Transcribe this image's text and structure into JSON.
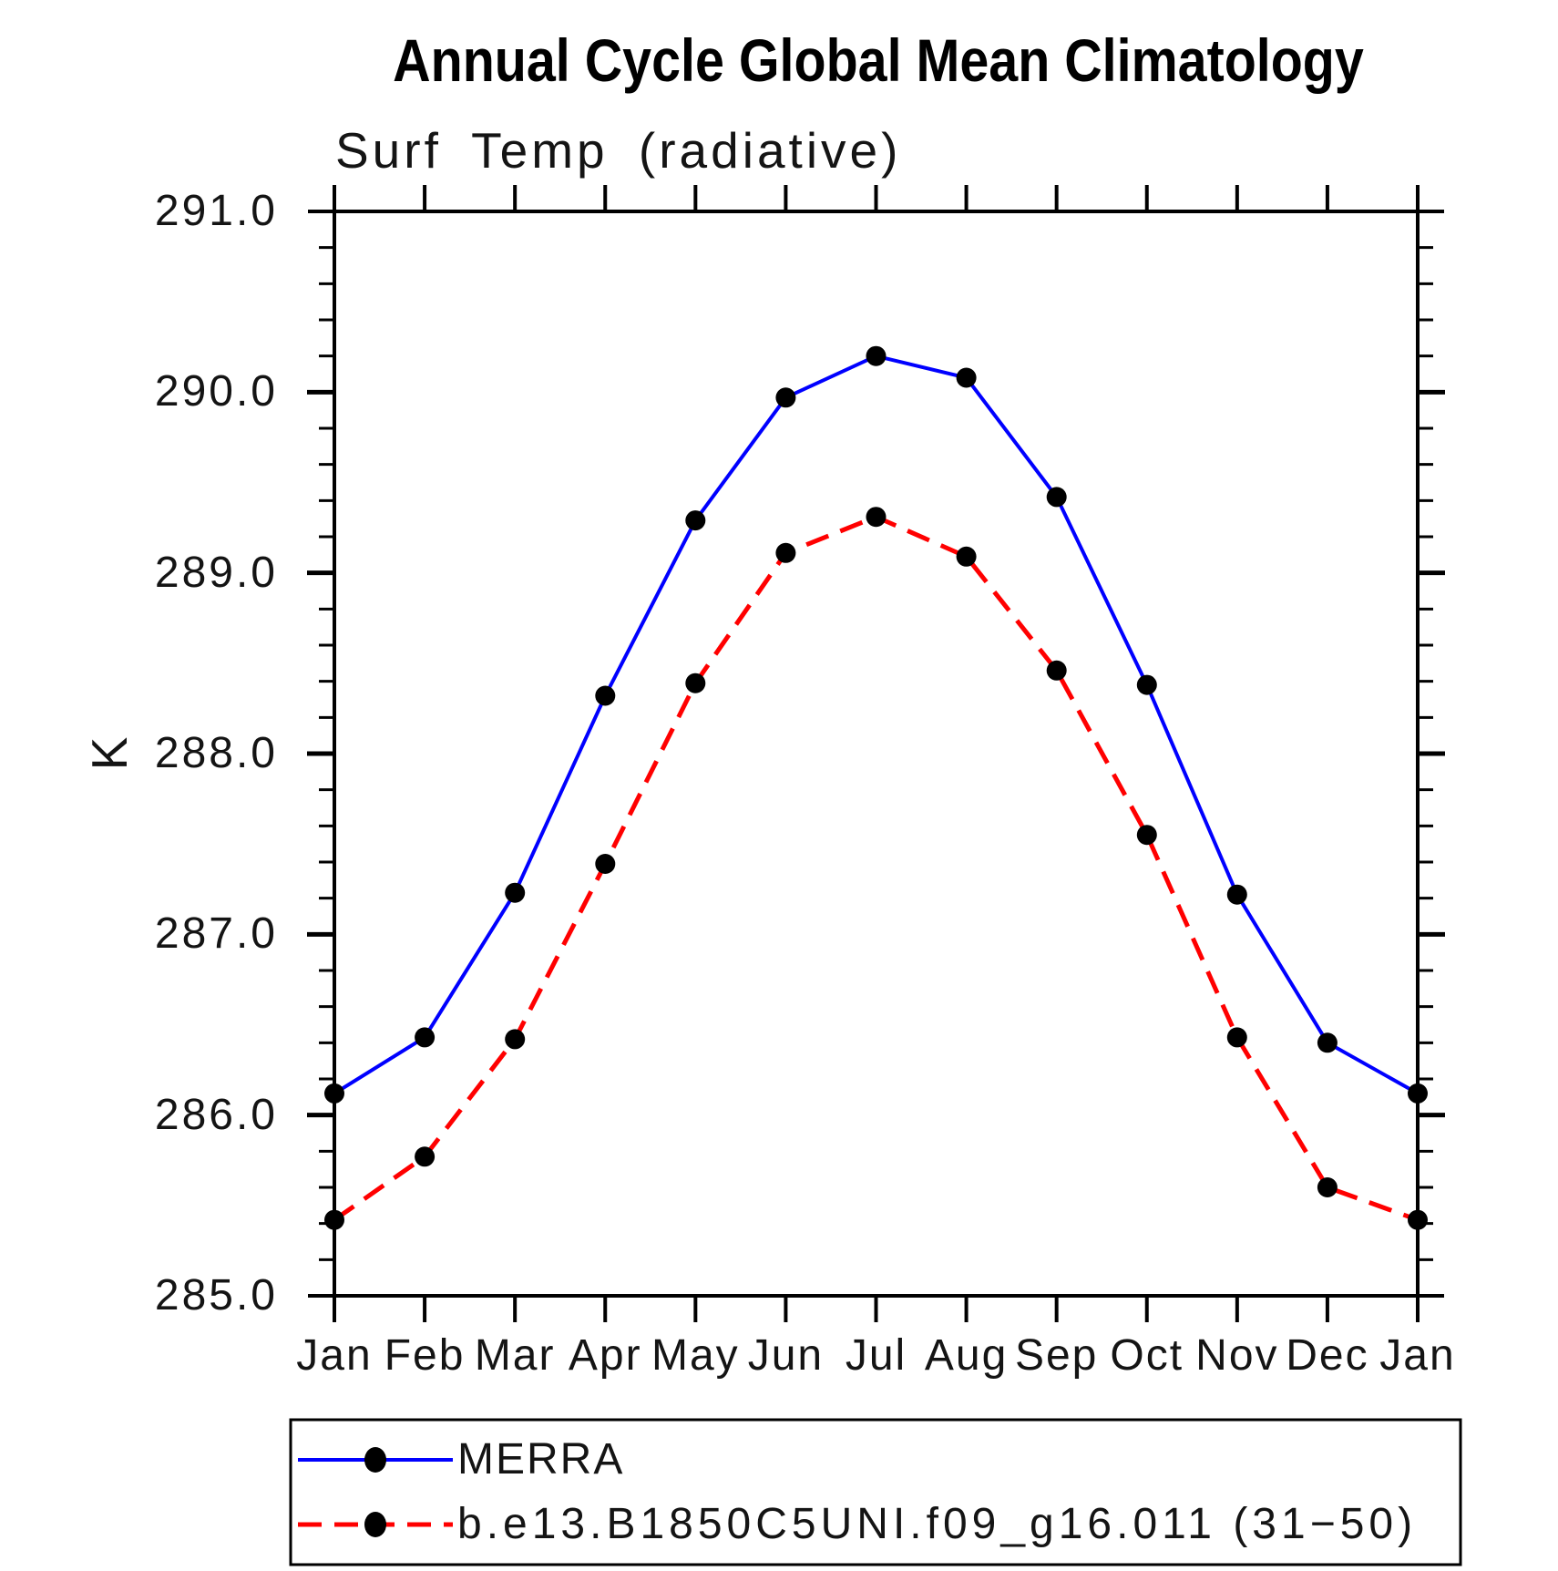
{
  "page_title": "Annual Cycle Global Mean Climatology",
  "chart_data": {
    "type": "line",
    "title": "Annual Cycle Global Mean Climatology",
    "subtitle": "Surf Temp (radiative)",
    "ylabel": "K",
    "x_categories": [
      "Jan",
      "Feb",
      "Mar",
      "Apr",
      "May",
      "Jun",
      "Jul",
      "Aug",
      "Sep",
      "Oct",
      "Nov",
      "Dec",
      "Jan"
    ],
    "ylim": [
      285.0,
      291.0
    ],
    "ytick_major_interval": 1.0,
    "ytick_minor_interval": 0.2,
    "ytick_labels": [
      "291.0",
      "290.0",
      "289.0",
      "288.0",
      "287.0",
      "286.0",
      "285.0"
    ],
    "grid": false,
    "legend_position": "bottom",
    "series": [
      {
        "name": "MERRA",
        "color": "#0000ff",
        "line_style": "solid",
        "marker": "filled-circle",
        "marker_color": "#000000",
        "values": [
          286.12,
          286.43,
          287.23,
          288.32,
          289.29,
          289.97,
          290.2,
          290.08,
          289.42,
          288.38,
          287.22,
          286.4,
          286.12
        ]
      },
      {
        "name": "b.e13.B1850C5UNI.f09_g16.011 (31−50)",
        "color": "#ff0000",
        "line_style": "dashed",
        "marker": "filled-circle",
        "marker_color": "#000000",
        "values": [
          285.42,
          285.77,
          286.42,
          287.39,
          288.39,
          289.11,
          289.31,
          289.09,
          288.46,
          287.55,
          286.43,
          285.6,
          285.42
        ]
      }
    ]
  }
}
